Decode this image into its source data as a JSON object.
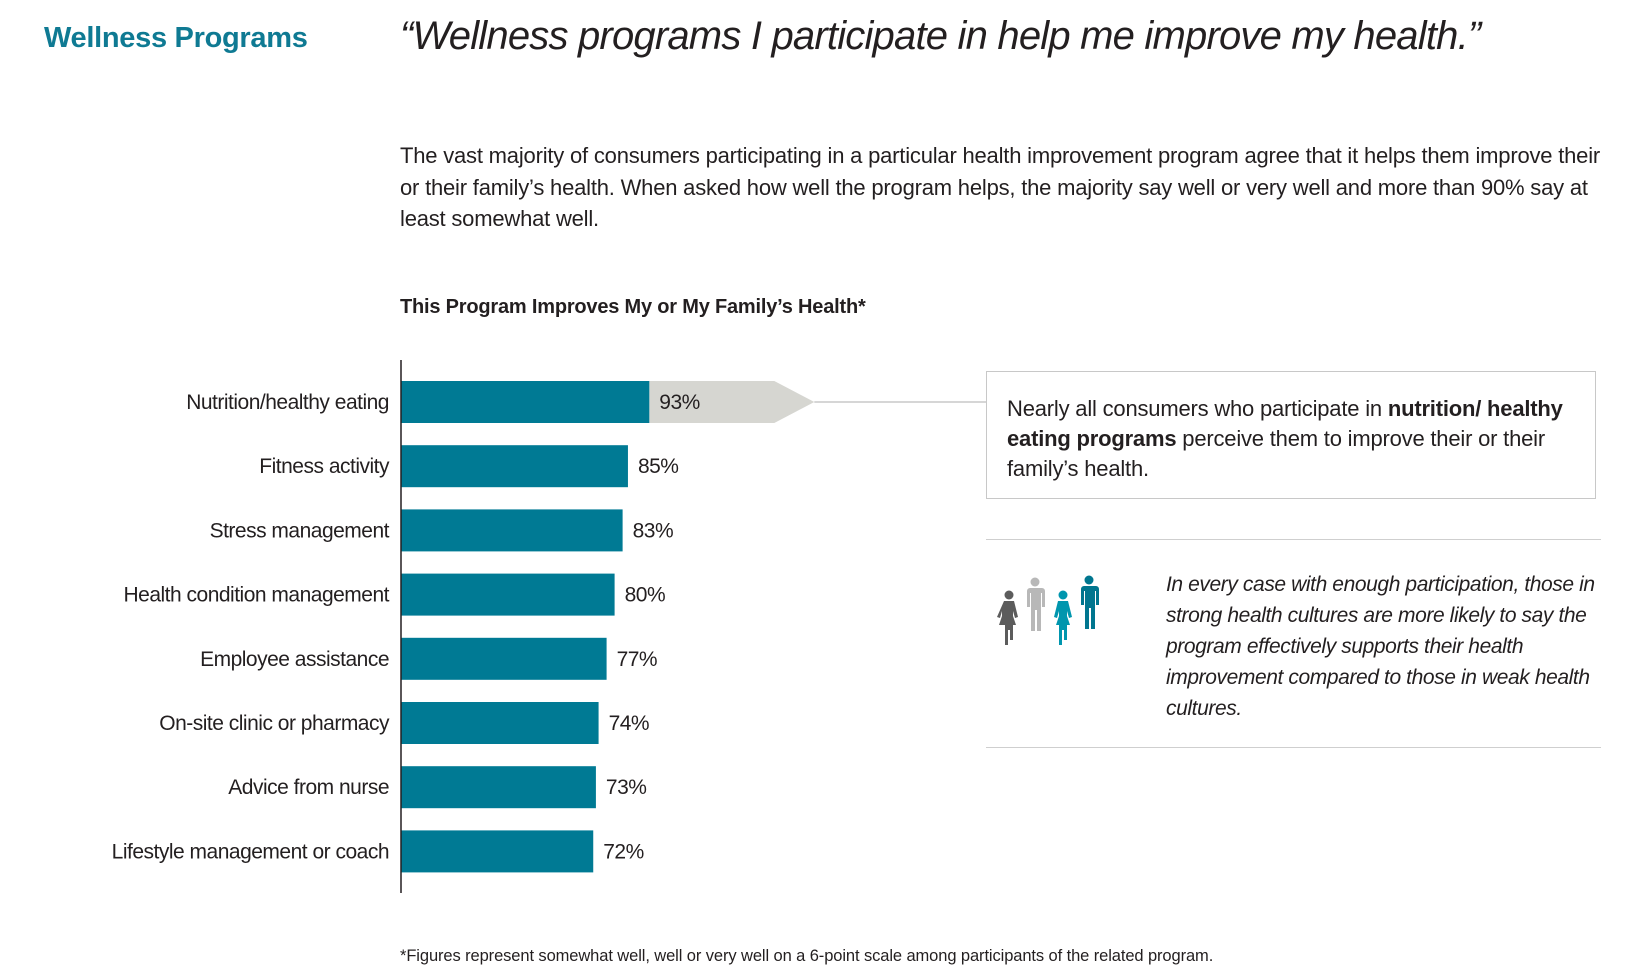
{
  "header": {
    "section_title": "Wellness Programs",
    "quote": "“Wellness programs I participate in help me improve my health.”"
  },
  "intro": "The vast majority of consumers participating in a particular health improvement program agree that it helps them improve their or their family’s health. When asked how well the program helps, the majority say well or very well and more than 90% say at least somewhat well.",
  "callout": {
    "pre": "Nearly all consumers who participate in ",
    "bold": "nutrition/ healthy eating programs",
    "post": " perceive them to improve their or their family’s health."
  },
  "note": "In every case with enough participation, those in strong health cultures are more likely to say the program effectively supports their health improvement compared to those in weak health cultures.",
  "footnote": "*Figures represent somewhat well, well or very well on a 6-point scale among participants of the related program.",
  "colors": {
    "bar": "#007a94",
    "highlight": "#d6d6d1",
    "title": "#0f7a93"
  },
  "chart_data": {
    "type": "bar",
    "orientation": "horizontal",
    "title": "This Program Improves My or My Family’s Health*",
    "categories": [
      "Nutrition/healthy eating",
      "Fitness activity",
      "Stress management",
      "Health condition management",
      "Employee assistance",
      "On-site clinic or pharmacy",
      "Advice from nurse",
      "Lifestyle management or coach"
    ],
    "values": [
      93,
      85,
      83,
      80,
      77,
      74,
      73,
      72
    ],
    "labels": [
      "93%",
      "85%",
      "83%",
      "80%",
      "77%",
      "74%",
      "73%",
      "72%"
    ],
    "unit": "%",
    "xlim": [
      0,
      100
    ],
    "highlight_index": 0,
    "grid": false
  }
}
